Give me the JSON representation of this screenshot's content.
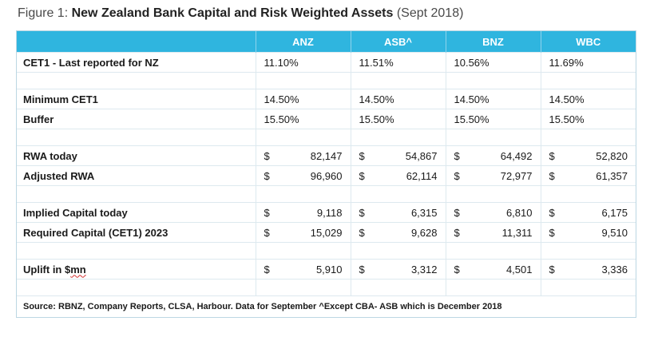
{
  "figure": {
    "prefix": "Figure 1: ",
    "title_bold": "New Zealand Bank Capital and Risk Weighted Assets",
    "title_suffix": " (Sept 2018)"
  },
  "table": {
    "headers": [
      "",
      "ANZ",
      "ASB^",
      "BNZ",
      "WBC"
    ],
    "cet1_label": "CET1 - Last reported for NZ",
    "cet1": [
      "11.10%",
      "11.51%",
      "10.56%",
      "11.69%"
    ],
    "min_cet1_label": "Minimum CET1",
    "min_cet1": [
      "14.50%",
      "14.50%",
      "14.50%",
      "14.50%"
    ],
    "buffer_label": "Buffer",
    "buffer": [
      "15.50%",
      "15.50%",
      "15.50%",
      "15.50%"
    ],
    "currency": "$",
    "rwa_today_label": "RWA today",
    "rwa_today": [
      "82,147",
      "54,867",
      "64,492",
      "52,820"
    ],
    "adj_rwa_label": "Adjusted RWA",
    "adj_rwa": [
      "96,960",
      "62,114",
      "72,977",
      "61,357"
    ],
    "implied_cap_label": "Implied Capital today",
    "implied_cap": [
      "9,118",
      "6,315",
      "6,810",
      "6,175"
    ],
    "required_cap_label": "Required Capital (CET1) 2023",
    "required_cap": [
      "15,029",
      "9,628",
      "11,311",
      "9,510"
    ],
    "uplift_label_prefix": "Uplift in $",
    "uplift_label_unit": "mn",
    "uplift": [
      "5,910",
      "3,312",
      "4,501",
      "3,336"
    ],
    "source": "Source: RBNZ, Company Reports, CLSA, Harbour. Data for September ^Except CBA- ASB which is December 2018"
  }
}
